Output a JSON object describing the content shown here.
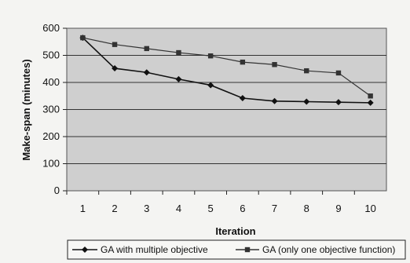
{
  "chart_data": {
    "type": "line",
    "xlabel": "Iteration",
    "ylabel": "Make-span (minutes)",
    "x": [
      "1",
      "2",
      "3",
      "4",
      "5",
      "6",
      "7",
      "8",
      "9",
      "10"
    ],
    "ylim": [
      0,
      600
    ],
    "yticks": [
      "0",
      "100",
      "200",
      "300",
      "400",
      "500",
      "600"
    ],
    "grid": true,
    "legend_position": "bottom",
    "series": [
      {
        "name": "GA with multiple objective",
        "marker": "diamond",
        "color": "#111111",
        "values": [
          565,
          452,
          437,
          412,
          390,
          342,
          331,
          329,
          327,
          325
        ]
      },
      {
        "name": "GA (only one objective function)",
        "marker": "square",
        "color": "#333333",
        "values": [
          565,
          540,
          525,
          510,
          498,
          475,
          466,
          443,
          435,
          350
        ]
      }
    ]
  }
}
